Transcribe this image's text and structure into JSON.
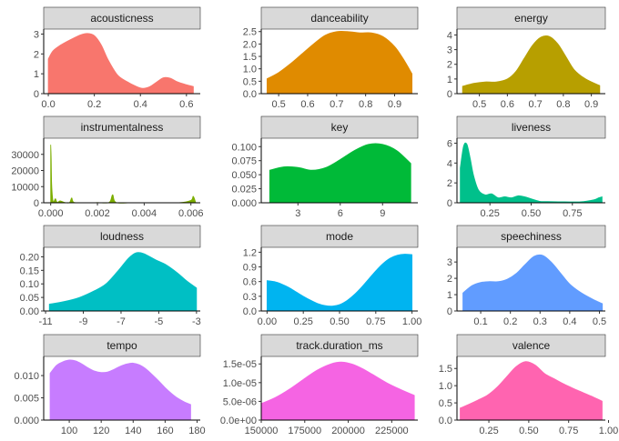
{
  "chart_data": {
    "type": "area",
    "grid": false,
    "panel_strip_color": "#d9d9d9",
    "panels": [
      {
        "title": "acousticness",
        "color": "#f8766d",
        "xlim": [
          -0.02,
          0.66
        ],
        "ylim": [
          0,
          3.25
        ],
        "xticks": [
          0.0,
          0.2,
          0.4,
          0.6
        ],
        "xtick_labels": [
          "0.0",
          "0.2",
          "0.4",
          "0.6"
        ],
        "yticks": [
          0,
          1,
          2,
          3
        ],
        "ytick_labels": [
          "0",
          "1",
          "2",
          "3"
        ],
        "x": [
          0.0,
          0.02,
          0.05,
          0.08,
          0.11,
          0.14,
          0.17,
          0.2,
          0.23,
          0.26,
          0.3,
          0.34,
          0.38,
          0.41,
          0.44,
          0.47,
          0.5,
          0.53,
          0.56,
          0.6,
          0.63
        ],
        "y": [
          1.75,
          2.15,
          2.42,
          2.62,
          2.8,
          2.96,
          3.03,
          2.92,
          2.45,
          1.7,
          0.95,
          0.62,
          0.38,
          0.27,
          0.35,
          0.58,
          0.8,
          0.78,
          0.6,
          0.45,
          0.36
        ]
      },
      {
        "title": "danceability",
        "color": "#e08b00",
        "xlim": [
          0.44,
          0.98
        ],
        "ylim": [
          0,
          2.6
        ],
        "xticks": [
          0.5,
          0.6,
          0.7,
          0.8,
          0.9
        ],
        "xtick_labels": [
          "0.5",
          "0.6",
          "0.7",
          "0.8",
          "0.9"
        ],
        "yticks": [
          0.0,
          0.5,
          1.0,
          1.5,
          2.0,
          2.5
        ],
        "ytick_labels": [
          "0.0",
          "0.5",
          "1.0",
          "1.5",
          "2.0",
          "2.5"
        ],
        "x": [
          0.46,
          0.5,
          0.54,
          0.58,
          0.62,
          0.66,
          0.7,
          0.74,
          0.78,
          0.82,
          0.86,
          0.9,
          0.93,
          0.96
        ],
        "y": [
          0.6,
          0.85,
          1.2,
          1.6,
          2.0,
          2.35,
          2.5,
          2.5,
          2.45,
          2.45,
          2.3,
          1.9,
          1.4,
          0.8
        ]
      },
      {
        "title": "energy",
        "color": "#b79f00",
        "xlim": [
          0.42,
          0.95
        ],
        "ylim": [
          0,
          4.4
        ],
        "xticks": [
          0.5,
          0.6,
          0.7,
          0.8,
          0.9
        ],
        "xtick_labels": [
          "0.5",
          "0.6",
          "0.7",
          "0.8",
          "0.9"
        ],
        "yticks": [
          0,
          1,
          2,
          3,
          4
        ],
        "ytick_labels": [
          "0",
          "1",
          "2",
          "3",
          "4"
        ],
        "x": [
          0.44,
          0.48,
          0.52,
          0.56,
          0.6,
          0.63,
          0.66,
          0.69,
          0.72,
          0.75,
          0.78,
          0.81,
          0.84,
          0.88,
          0.93
        ],
        "y": [
          0.5,
          0.7,
          0.8,
          0.8,
          1.0,
          1.5,
          2.4,
          3.3,
          3.85,
          3.9,
          3.4,
          2.5,
          1.6,
          1.0,
          0.55
        ]
      },
      {
        "title": "instrumentalness",
        "color": "#7cae00",
        "xlim": [
          -0.0003,
          0.0064
        ],
        "ylim": [
          0,
          40000
        ],
        "xticks": [
          0.0,
          0.002,
          0.004,
          0.006
        ],
        "xtick_labels": [
          "0.000",
          "0.002",
          "0.004",
          "0.006"
        ],
        "yticks": [
          0,
          10000,
          20000,
          30000
        ],
        "ytick_labels": [
          "0",
          "10000",
          "20000",
          "30000"
        ],
        "x": [
          0.0,
          2e-05,
          4e-05,
          8e-05,
          0.00012,
          0.0002,
          0.00025,
          0.0003,
          0.0004,
          0.0006,
          0.0008,
          0.0009,
          0.001,
          0.0015,
          0.002,
          0.0025,
          0.00265,
          0.0028,
          0.0035,
          0.0045,
          0.0055,
          0.006,
          0.0061,
          0.0062
        ],
        "y": [
          36000,
          28000,
          12000,
          3000,
          500,
          2500,
          800,
          200,
          1200,
          200,
          50,
          3000,
          200,
          50,
          100,
          200,
          5000,
          150,
          50,
          50,
          50,
          1500,
          4000,
          300
        ]
      },
      {
        "title": "key",
        "color": "#00ba38",
        "xlim": [
          0.4,
          11.5
        ],
        "ylim": [
          0,
          0.115
        ],
        "xticks": [
          3,
          6,
          9
        ],
        "xtick_labels": [
          "3",
          "6",
          "9"
        ],
        "yticks": [
          0.0,
          0.025,
          0.05,
          0.075,
          0.1
        ],
        "ytick_labels": [
          "0.000",
          "0.025",
          "0.050",
          "0.075",
          "0.100"
        ],
        "x": [
          1,
          2,
          3,
          4,
          5,
          6,
          7,
          8,
          9,
          10,
          11
        ],
        "y": [
          0.058,
          0.064,
          0.063,
          0.058,
          0.063,
          0.077,
          0.093,
          0.104,
          0.104,
          0.093,
          0.07
        ]
      },
      {
        "title": "liveness",
        "color": "#00c08b",
        "xlim": [
          0.05,
          0.95
        ],
        "ylim": [
          0,
          6.5
        ],
        "xticks": [
          0.25,
          0.5,
          0.75
        ],
        "xtick_labels": [
          "0.25",
          "0.50",
          "0.75"
        ],
        "yticks": [
          0,
          2,
          4,
          6
        ],
        "ytick_labels": [
          "0",
          "2",
          "4",
          "6"
        ],
        "x": [
          0.07,
          0.09,
          0.11,
          0.13,
          0.15,
          0.18,
          0.22,
          0.26,
          0.3,
          0.34,
          0.38,
          0.42,
          0.46,
          0.5,
          0.55,
          0.6,
          0.7,
          0.8,
          0.88,
          0.91,
          0.93
        ],
        "y": [
          3.5,
          5.7,
          5.9,
          4.5,
          2.8,
          1.3,
          0.8,
          0.9,
          0.5,
          0.6,
          0.5,
          0.7,
          0.6,
          0.4,
          0.15,
          0.12,
          0.1,
          0.1,
          0.3,
          0.5,
          0.6
        ]
      },
      {
        "title": "loudness",
        "color": "#00bfc4",
        "xlim": [
          -11.1,
          -2.8
        ],
        "ylim": [
          0,
          0.235
        ],
        "xticks": [
          -11,
          -9,
          -7,
          -5,
          -3
        ],
        "xtick_labels": [
          "-11",
          "-9",
          "-7",
          "-5",
          "-3"
        ],
        "yticks": [
          0.0,
          0.05,
          0.1,
          0.15,
          0.2
        ],
        "ytick_labels": [
          "0.00",
          "0.05",
          "0.10",
          "0.15",
          "0.20"
        ],
        "x": [
          -10.8,
          -10,
          -9.2,
          -8.4,
          -7.8,
          -7.2,
          -6.6,
          -6.2,
          -5.8,
          -5.2,
          -4.6,
          -4,
          -3.5,
          -3.0
        ],
        "y": [
          0.025,
          0.035,
          0.05,
          0.075,
          0.1,
          0.145,
          0.195,
          0.215,
          0.212,
          0.19,
          0.17,
          0.14,
          0.11,
          0.085
        ]
      },
      {
        "title": "mode",
        "color": "#00b4f0",
        "xlim": [
          -0.04,
          1.04
        ],
        "ylim": [
          0,
          1.3
        ],
        "xticks": [
          0.0,
          0.25,
          0.5,
          0.75,
          1.0
        ],
        "xtick_labels": [
          "0.00",
          "0.25",
          "0.50",
          "0.75",
          "1.00"
        ],
        "yticks": [
          0.0,
          0.3,
          0.6,
          0.9,
          1.2
        ],
        "ytick_labels": [
          "0.0",
          "0.3",
          "0.6",
          "0.9",
          "1.2"
        ],
        "x": [
          0.0,
          0.05,
          0.1,
          0.15,
          0.2,
          0.25,
          0.3,
          0.35,
          0.4,
          0.45,
          0.5,
          0.55,
          0.6,
          0.65,
          0.7,
          0.75,
          0.8,
          0.85,
          0.9,
          0.95,
          1.0
        ],
        "y": [
          0.62,
          0.6,
          0.55,
          0.48,
          0.39,
          0.3,
          0.22,
          0.15,
          0.11,
          0.1,
          0.13,
          0.21,
          0.33,
          0.48,
          0.65,
          0.82,
          0.97,
          1.08,
          1.14,
          1.16,
          1.15
        ]
      },
      {
        "title": "speechiness",
        "color": "#619cff",
        "xlim": [
          0.02,
          0.52
        ],
        "ylim": [
          0,
          3.9
        ],
        "xticks": [
          0.1,
          0.2,
          0.3,
          0.4,
          0.5
        ],
        "xtick_labels": [
          "0.1",
          "0.2",
          "0.3",
          "0.4",
          "0.5"
        ],
        "yticks": [
          0,
          1,
          2,
          3
        ],
        "ytick_labels": [
          "0",
          "1",
          "2",
          "3"
        ],
        "x": [
          0.04,
          0.07,
          0.1,
          0.13,
          0.16,
          0.19,
          0.22,
          0.25,
          0.28,
          0.31,
          0.34,
          0.37,
          0.4,
          0.44,
          0.48,
          0.51
        ],
        "y": [
          1.1,
          1.55,
          1.75,
          1.8,
          1.8,
          1.95,
          2.3,
          2.85,
          3.35,
          3.4,
          2.95,
          2.3,
          1.65,
          1.1,
          0.7,
          0.45
        ]
      },
      {
        "title": "tempo",
        "color": "#c77cff",
        "xlim": [
          84,
          182
        ],
        "ylim": [
          0,
          0.0143
        ],
        "xticks": [
          100,
          120,
          140,
          160,
          180
        ],
        "xtick_labels": [
          "100",
          "120",
          "140",
          "160",
          "180"
        ],
        "yticks": [
          0.0,
          0.005,
          0.01
        ],
        "ytick_labels": [
          "0.000",
          "0.005",
          "0.010"
        ],
        "x": [
          88,
          92,
          96,
          100,
          104,
          108,
          112,
          116,
          120,
          124,
          128,
          132,
          136,
          140,
          144,
          148,
          152,
          156,
          160,
          164,
          168,
          172,
          176
        ],
        "y": [
          0.0105,
          0.0123,
          0.0131,
          0.0135,
          0.0133,
          0.0126,
          0.0117,
          0.011,
          0.0107,
          0.0108,
          0.0114,
          0.0121,
          0.0126,
          0.0128,
          0.0124,
          0.0115,
          0.0102,
          0.0088,
          0.0073,
          0.006,
          0.0049,
          0.0041,
          0.0035
        ]
      },
      {
        "title": "track.duration_ms",
        "color": "#f564e3",
        "xlim": [
          150000,
          240000
        ],
        "ylim": [
          0,
          1.7e-05
        ],
        "xticks": [
          150000,
          175000,
          200000,
          225000
        ],
        "xtick_labels": [
          "150000",
          "175000",
          "200000",
          "225000"
        ],
        "yticks": [
          0,
          5e-06,
          1e-05,
          1.5e-05
        ],
        "ytick_labels": [
          "0.0e+00",
          "5.0e-06",
          "1.0e-05",
          "1.5e-05"
        ],
        "x": [
          150000,
          158000,
          166000,
          174000,
          182000,
          190000,
          196000,
          202000,
          208000,
          214000,
          222000,
          230000,
          238000
        ],
        "y": [
          4.4e-06,
          6e-06,
          8.2e-06,
          1.08e-05,
          1.33e-05,
          1.5e-05,
          1.55e-05,
          1.5e-05,
          1.38e-05,
          1.22e-05,
          1e-05,
          8.2e-06,
          6.6e-06
        ]
      },
      {
        "title": "valence",
        "color": "#ff64b0",
        "xlim": [
          0.05,
          0.98
        ],
        "ylim": [
          0,
          1.85
        ],
        "xticks": [
          0.25,
          0.5,
          0.75,
          1.0
        ],
        "xtick_labels": [
          "0.25",
          "0.50",
          "0.75",
          "1.00"
        ],
        "yticks": [
          0.0,
          0.5,
          1.0,
          1.5
        ],
        "ytick_labels": [
          "0.0",
          "0.5",
          "1.0",
          "1.5"
        ],
        "x": [
          0.07,
          0.12,
          0.18,
          0.24,
          0.3,
          0.36,
          0.42,
          0.48,
          0.54,
          0.6,
          0.66,
          0.72,
          0.78,
          0.84,
          0.9,
          0.96
        ],
        "y": [
          0.35,
          0.45,
          0.58,
          0.72,
          0.95,
          1.25,
          1.55,
          1.7,
          1.6,
          1.35,
          1.2,
          1.05,
          0.92,
          0.8,
          0.68,
          0.55
        ]
      }
    ]
  }
}
